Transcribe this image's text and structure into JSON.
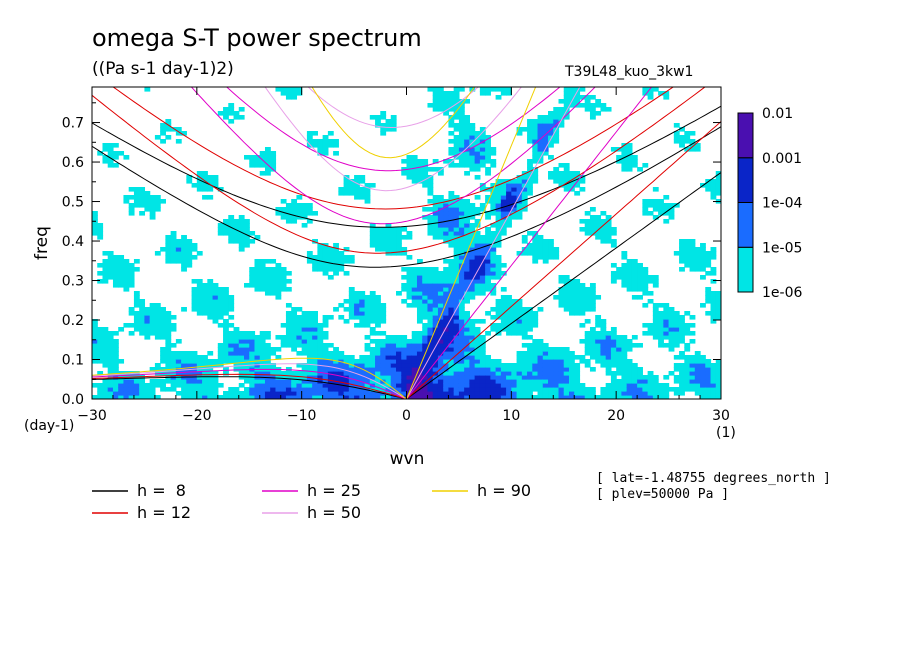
{
  "chart_data": {
    "type": "heatmap",
    "title": "omega S-T power spectrum",
    "units": "((Pa s-1 day-1)2)",
    "run_label": "T39L48_kuo_3kw1",
    "xlabel": "wvn",
    "ylabel": "freq",
    "x_unit_label": "(1)",
    "y_unit_label": "(day-1)",
    "xlim": [
      -30,
      30
    ],
    "ylim": [
      0,
      0.79
    ],
    "xticks": [
      -30,
      -20,
      -10,
      0,
      10,
      20,
      30
    ],
    "yticks": [
      0.0,
      0.1,
      0.2,
      0.3,
      0.4,
      0.5,
      0.6,
      0.7
    ],
    "colorbar": {
      "levels": [
        "1e-06",
        "1e-05",
        "1e-04",
        "0.001",
        "0.01"
      ],
      "colors": [
        "#00e5e5",
        "#1a6cff",
        "#0a25c8",
        "#4a0fb0"
      ]
    },
    "dispersion_curves": [
      {
        "label": "h =  8",
        "h": 8,
        "color": "#000000"
      },
      {
        "label": "h = 12",
        "h": 12,
        "color": "#e00000"
      },
      {
        "label": "h = 25",
        "h": 25,
        "color": "#e000c8"
      },
      {
        "label": "h = 50",
        "h": 50,
        "color": "#e8a0e8"
      },
      {
        "label": "h = 90",
        "h": 90,
        "color": "#f0d000"
      }
    ],
    "annotations": [
      "[ lat=-1.48755 degrees_north ]",
      "[ plev=50000 Pa ]"
    ]
  }
}
